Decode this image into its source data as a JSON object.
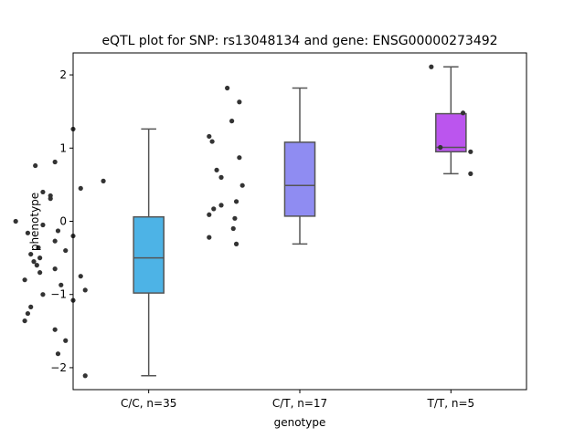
{
  "chart_data": {
    "type": "box",
    "title": "eQTL plot for SNP: rs13048134 and gene: ENSG00000273492",
    "xlabel": "genotype",
    "ylabel": "phenotype",
    "ylim": [
      -2.3,
      2.3
    ],
    "yticks": [
      -2,
      -1,
      0,
      1,
      2
    ],
    "grid": false,
    "categories": [
      "C/C, n=35",
      "C/T, n=17",
      "T/T, n=5"
    ],
    "colors": [
      "#4db3e6",
      "#8f8cf2",
      "#bb55ee"
    ],
    "boxes": [
      {
        "q1": -0.98,
        "median": -0.5,
        "q3": 0.06,
        "whisker_low": -2.11,
        "whisker_high": 1.26
      },
      {
        "q1": 0.07,
        "median": 0.49,
        "q3": 1.08,
        "whisker_low": -0.31,
        "whisker_high": 1.82
      },
      {
        "q1": 0.95,
        "median": 1.01,
        "q3": 1.47,
        "whisker_low": 0.65,
        "whisker_high": 2.11
      }
    ],
    "points": [
      [
        [
          -0.5,
          1.26
        ],
        [
          -0.75,
          0.76
        ],
        [
          -0.62,
          0.81
        ],
        [
          -0.3,
          0.55
        ],
        [
          -0.45,
          0.45
        ],
        [
          -0.7,
          0.4
        ],
        [
          -0.65,
          0.35
        ],
        [
          -0.65,
          0.31
        ],
        [
          -0.88,
          0.0
        ],
        [
          -0.7,
          -0.05
        ],
        [
          -0.6,
          -0.13
        ],
        [
          -0.8,
          -0.16
        ],
        [
          -0.5,
          -0.2
        ],
        [
          -0.62,
          -0.27
        ],
        [
          -0.73,
          -0.36
        ],
        [
          -0.55,
          -0.4
        ],
        [
          -0.78,
          -0.45
        ],
        [
          -0.72,
          -0.5
        ],
        [
          -0.76,
          -0.55
        ],
        [
          -0.74,
          -0.6
        ],
        [
          -0.62,
          -0.65
        ],
        [
          -0.72,
          -0.7
        ],
        [
          -0.45,
          -0.75
        ],
        [
          -0.82,
          -0.8
        ],
        [
          -0.58,
          -0.87
        ],
        [
          -0.42,
          -0.94
        ],
        [
          -0.7,
          -1.0
        ],
        [
          -0.5,
          -1.08
        ],
        [
          -0.78,
          -1.17
        ],
        [
          -0.8,
          -1.26
        ],
        [
          -0.82,
          -1.36
        ],
        [
          -0.62,
          -1.48
        ],
        [
          -0.55,
          -1.63
        ],
        [
          -0.6,
          -1.81
        ],
        [
          -0.42,
          -2.11
        ]
      ],
      [
        [
          0.52,
          1.82
        ],
        [
          0.4,
          1.16
        ],
        [
          0.42,
          1.09
        ],
        [
          0.6,
          1.63
        ],
        [
          0.55,
          1.37
        ],
        [
          0.6,
          0.87
        ],
        [
          0.45,
          0.7
        ],
        [
          0.48,
          0.6
        ],
        [
          0.62,
          0.49
        ],
        [
          0.58,
          0.27
        ],
        [
          0.48,
          0.22
        ],
        [
          0.43,
          0.17
        ],
        [
          0.4,
          0.09
        ],
        [
          0.57,
          0.04
        ],
        [
          0.56,
          -0.1
        ],
        [
          0.4,
          -0.22
        ],
        [
          0.58,
          -0.31
        ]
      ],
      [
        [
          1.87,
          2.11
        ],
        [
          2.08,
          1.48
        ],
        [
          1.93,
          1.01
        ],
        [
          2.13,
          0.95
        ],
        [
          2.13,
          0.65
        ]
      ]
    ]
  }
}
